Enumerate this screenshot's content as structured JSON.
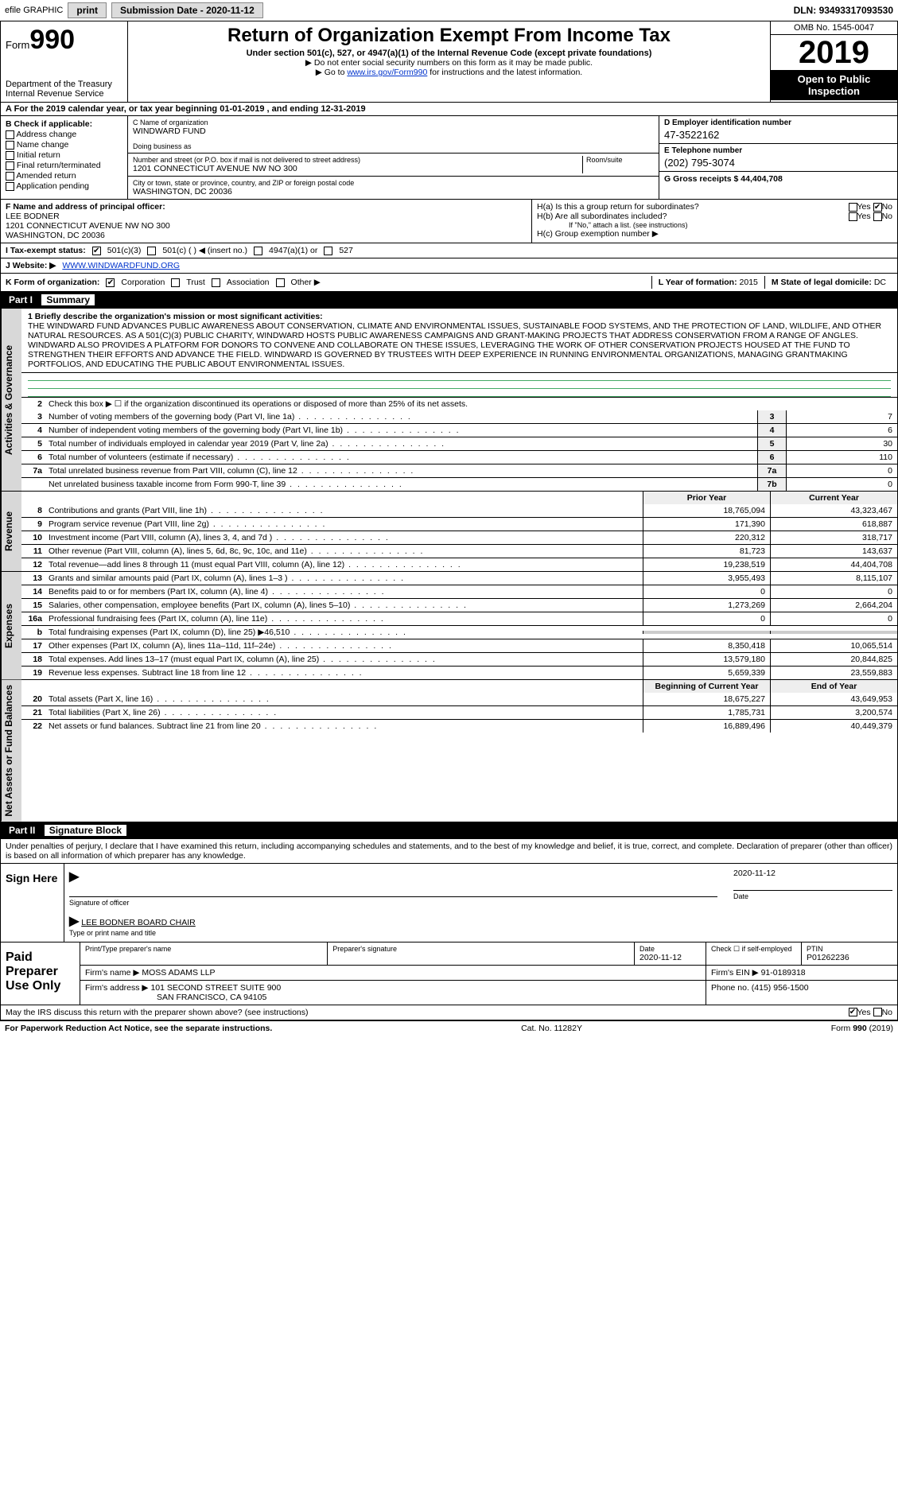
{
  "topbar": {
    "efile": "efile GRAPHIC",
    "print": "print",
    "subdate_label": "Submission Date - ",
    "subdate": "2020-11-12",
    "dln_label": "DLN: ",
    "dln": "93493317093530"
  },
  "header": {
    "form_prefix": "Form",
    "form_number": "990",
    "dept": "Department of the Treasury",
    "irs": "Internal Revenue Service",
    "title": "Return of Organization Exempt From Income Tax",
    "sub": "Under section 501(c), 527, or 4947(a)(1) of the Internal Revenue Code (except private foundations)",
    "note1": "▶ Do not enter social security numbers on this form as it may be made public.",
    "note2_a": "▶ Go to ",
    "note2_link": "www.irs.gov/Form990",
    "note2_b": " for instructions and the latest information.",
    "omb": "OMB No. 1545-0047",
    "year": "2019",
    "open": "Open to Public Inspection"
  },
  "period": {
    "text_a": "A For the 2019 calendar year, or tax year beginning ",
    "begin": "01-01-2019",
    "text_b": " , and ending ",
    "end": "12-31-2019"
  },
  "secB": {
    "label": "B Check if applicable:",
    "items": [
      "Address change",
      "Name change",
      "Initial return",
      "Final return/terminated",
      "Amended return",
      "Application pending"
    ]
  },
  "secC": {
    "name_label": "C Name of organization",
    "name": "WINDWARD FUND",
    "dba_label": "Doing business as",
    "dba": "",
    "addr_label": "Number and street (or P.O. box if mail is not delivered to street address)",
    "room_label": "Room/suite",
    "addr": "1201 CONNECTICUT AVENUE NW NO 300",
    "city_label": "City or town, state or province, country, and ZIP or foreign postal code",
    "city": "WASHINGTON, DC  20036"
  },
  "secD": {
    "label": "D Employer identification number",
    "val": "47-3522162"
  },
  "secE": {
    "label": "E Telephone number",
    "val": "(202) 795-3074"
  },
  "secG": {
    "label": "G Gross receipts $ ",
    "val": "44,404,708"
  },
  "secF": {
    "label": "F  Name and address of principal officer:",
    "name": "LEE BODNER",
    "addr1": "1201 CONNECTICUT AVENUE NW NO 300",
    "addr2": "WASHINGTON, DC  20036"
  },
  "secH": {
    "ha": "H(a)  Is this a group return for subordinates?",
    "ha_yes": "Yes",
    "ha_no": "No",
    "hb": "H(b)  Are all subordinates included?",
    "hb_note": "If \"No,\" attach a list. (see instructions)",
    "hc": "H(c)  Group exemption number ▶"
  },
  "secI": {
    "label": "I   Tax-exempt status:",
    "opts": [
      "501(c)(3)",
      "501(c) (  ) ◀ (insert no.)",
      "4947(a)(1) or",
      "527"
    ]
  },
  "secJ": {
    "label": "J   Website: ▶",
    "url": "WWW.WINDWARDFUND.ORG"
  },
  "secK": {
    "label": "K Form of organization:",
    "opts": [
      "Corporation",
      "Trust",
      "Association",
      "Other ▶"
    ],
    "L_label": "L Year of formation: ",
    "L_val": "2015",
    "M_label": "M State of legal domicile: ",
    "M_val": "DC"
  },
  "part1": {
    "title": "Part I",
    "sub": "Summary",
    "vtab_gov": "Activities & Governance",
    "vtab_rev": "Revenue",
    "vtab_exp": "Expenses",
    "vtab_net": "Net Assets or Fund Balances",
    "l1_label": "1  Briefly describe the organization's mission or most significant activities:",
    "mission": "THE WINDWARD FUND ADVANCES PUBLIC AWARENESS ABOUT CONSERVATION, CLIMATE AND ENVIRONMENTAL ISSUES, SUSTAINABLE FOOD SYSTEMS, AND THE PROTECTION OF LAND, WILDLIFE, AND OTHER NATURAL RESOURCES. AS A 501(C)(3) PUBLIC CHARITY, WINDWARD HOSTS PUBLIC AWARENESS CAMPAIGNS AND GRANT-MAKING PROJECTS THAT ADDRESS CONSERVATION FROM A RANGE OF ANGLES. WINDWARD ALSO PROVIDES A PLATFORM FOR DONORS TO CONVENE AND COLLABORATE ON THESE ISSUES, LEVERAGING THE WORK OF OTHER CONSERVATION PROJECTS HOUSED AT THE FUND TO STRENGTHEN THEIR EFFORTS AND ADVANCE THE FIELD. WINDWARD IS GOVERNED BY TRUSTEES WITH DEEP EXPERIENCE IN RUNNING ENVIRONMENTAL ORGANIZATIONS, MANAGING GRANTMAKING PORTFOLIOS, AND EDUCATING THE PUBLIC ABOUT ENVIRONMENTAL ISSUES.",
    "l2": "Check this box ▶ ☐ if the organization discontinued its operations or disposed of more than 25% of its net assets.",
    "lines_small": [
      {
        "n": "3",
        "t": "Number of voting members of the governing body (Part VI, line 1a)",
        "box": "3",
        "v": "7"
      },
      {
        "n": "4",
        "t": "Number of independent voting members of the governing body (Part VI, line 1b)",
        "box": "4",
        "v": "6"
      },
      {
        "n": "5",
        "t": "Total number of individuals employed in calendar year 2019 (Part V, line 2a)",
        "box": "5",
        "v": "30"
      },
      {
        "n": "6",
        "t": "Total number of volunteers (estimate if necessary)",
        "box": "6",
        "v": "110"
      },
      {
        "n": "7a",
        "t": "Total unrelated business revenue from Part VIII, column (C), line 12",
        "box": "7a",
        "v": "0"
      },
      {
        "n": "",
        "t": "Net unrelated business taxable income from Form 990-T, line 39",
        "box": "7b",
        "v": "0"
      }
    ],
    "hdr_prior": "Prior Year",
    "hdr_curr": "Current Year",
    "rev": [
      {
        "n": "8",
        "t": "Contributions and grants (Part VIII, line 1h)",
        "p": "18,765,094",
        "c": "43,323,467"
      },
      {
        "n": "9",
        "t": "Program service revenue (Part VIII, line 2g)",
        "p": "171,390",
        "c": "618,887"
      },
      {
        "n": "10",
        "t": "Investment income (Part VIII, column (A), lines 3, 4, and 7d )",
        "p": "220,312",
        "c": "318,717"
      },
      {
        "n": "11",
        "t": "Other revenue (Part VIII, column (A), lines 5, 6d, 8c, 9c, 10c, and 11e)",
        "p": "81,723",
        "c": "143,637"
      },
      {
        "n": "12",
        "t": "Total revenue—add lines 8 through 11 (must equal Part VIII, column (A), line 12)",
        "p": "19,238,519",
        "c": "44,404,708"
      }
    ],
    "exp": [
      {
        "n": "13",
        "t": "Grants and similar amounts paid (Part IX, column (A), lines 1–3 )",
        "p": "3,955,493",
        "c": "8,115,107"
      },
      {
        "n": "14",
        "t": "Benefits paid to or for members (Part IX, column (A), line 4)",
        "p": "0",
        "c": "0"
      },
      {
        "n": "15",
        "t": "Salaries, other compensation, employee benefits (Part IX, column (A), lines 5–10)",
        "p": "1,273,269",
        "c": "2,664,204"
      },
      {
        "n": "16a",
        "t": "Professional fundraising fees (Part IX, column (A), line 11e)",
        "p": "0",
        "c": "0"
      },
      {
        "n": "b",
        "t": "Total fundraising expenses (Part IX, column (D), line 25) ▶46,510",
        "p": "",
        "c": "",
        "gray": true
      },
      {
        "n": "17",
        "t": "Other expenses (Part IX, column (A), lines 11a–11d, 11f–24e)",
        "p": "8,350,418",
        "c": "10,065,514"
      },
      {
        "n": "18",
        "t": "Total expenses. Add lines 13–17 (must equal Part IX, column (A), line 25)",
        "p": "13,579,180",
        "c": "20,844,825"
      },
      {
        "n": "19",
        "t": "Revenue less expenses. Subtract line 18 from line 12",
        "p": "5,659,339",
        "c": "23,559,883"
      }
    ],
    "hdr_begin": "Beginning of Current Year",
    "hdr_end": "End of Year",
    "net": [
      {
        "n": "20",
        "t": "Total assets (Part X, line 16)",
        "p": "18,675,227",
        "c": "43,649,953"
      },
      {
        "n": "21",
        "t": "Total liabilities (Part X, line 26)",
        "p": "1,785,731",
        "c": "3,200,574"
      },
      {
        "n": "22",
        "t": "Net assets or fund balances. Subtract line 21 from line 20",
        "p": "16,889,496",
        "c": "40,449,379"
      }
    ]
  },
  "part2": {
    "title": "Part II",
    "sub": "Signature Block",
    "intro": "Under penalties of perjury, I declare that I have examined this return, including accompanying schedules and statements, and to the best of my knowledge and belief, it is true, correct, and complete. Declaration of preparer (other than officer) is based on all information of which preparer has any knowledge.",
    "sign_here": "Sign Here",
    "sig_officer": "Signature of officer",
    "sig_date": "2020-11-12",
    "date_label": "Date",
    "printed": "LEE BODNER  BOARD CHAIR",
    "printed_label": "Type or print name and title",
    "paid": "Paid Preparer Use Only",
    "pp_name_label": "Print/Type preparer's name",
    "pp_sig_label": "Preparer's signature",
    "pp_date_label": "Date",
    "pp_date": "2020-11-12",
    "pp_check": "Check ☐ if self-employed",
    "ptin_label": "PTIN",
    "ptin": "P01262236",
    "firm_name_label": "Firm's name     ▶",
    "firm_name": "MOSS ADAMS LLP",
    "firm_ein_label": "Firm's EIN ▶",
    "firm_ein": "91-0189318",
    "firm_addr_label": "Firm's address ▶",
    "firm_addr1": "101 SECOND STREET SUITE 900",
    "firm_addr2": "SAN FRANCISCO, CA  94105",
    "phone_label": "Phone no. ",
    "phone": "(415) 956-1500",
    "discuss": "May the IRS discuss this return with the preparer shown above? (see instructions)",
    "yes": "Yes",
    "no": "No"
  },
  "footer": {
    "left": "For Paperwork Reduction Act Notice, see the separate instructions.",
    "mid": "Cat. No. 11282Y",
    "right": "Form 990 (2019)"
  }
}
